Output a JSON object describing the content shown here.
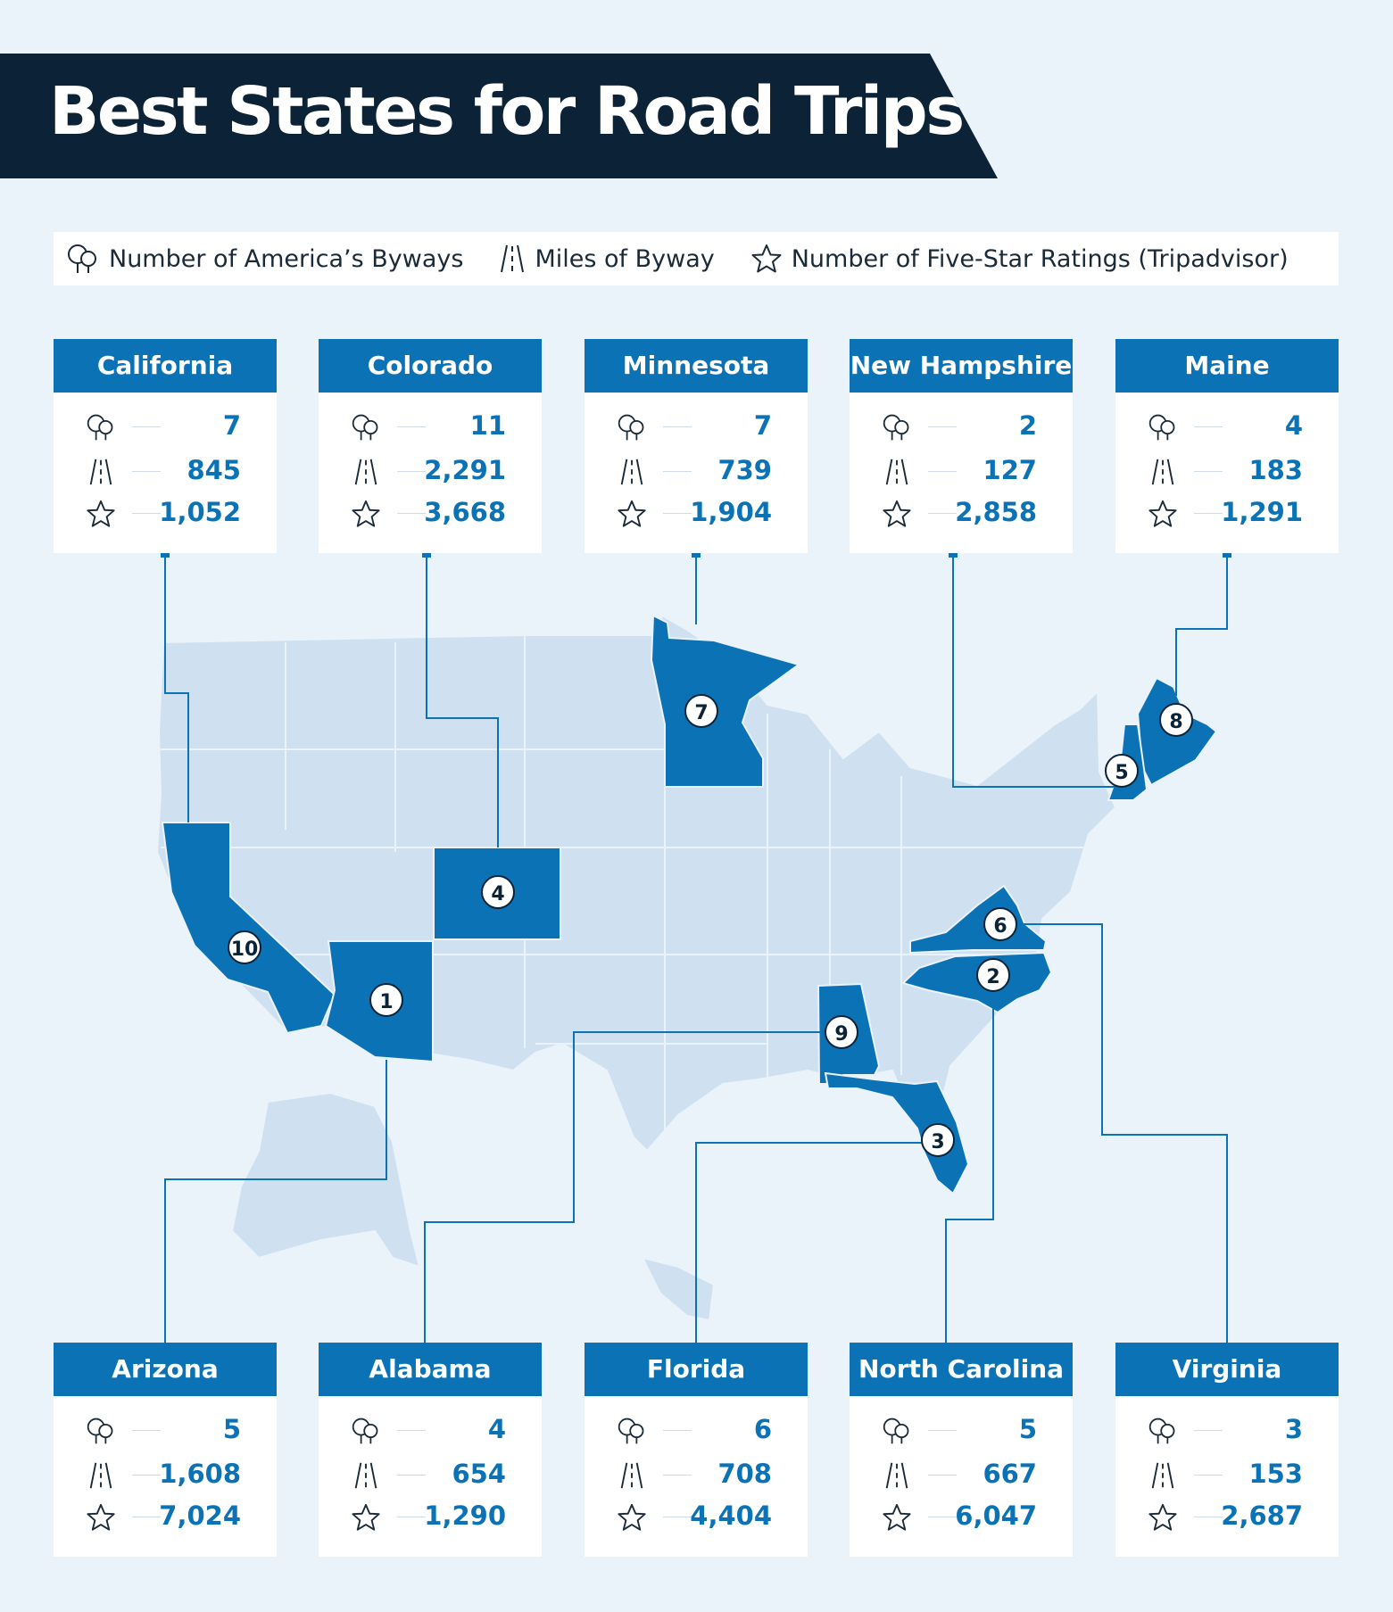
{
  "title": "Best States for Road Trips",
  "legend": {
    "byways": "Number of America’s Byways",
    "miles": "Miles of Byway",
    "ratings": "Number of Five-Star Ratings (Tripadvisor)"
  },
  "colors": {
    "banner": "#0c2337",
    "accent": "#0b73b5",
    "map_base": "#cfe0f0",
    "background": "#eaf2fa"
  },
  "states": [
    {
      "name": "California",
      "rank": "10",
      "byways": "7",
      "miles": "845",
      "ratings": "1,052"
    },
    {
      "name": "Colorado",
      "rank": "4",
      "byways": "11",
      "miles": "2,291",
      "ratings": "3,668"
    },
    {
      "name": "Minnesota",
      "rank": "7",
      "byways": "7",
      "miles": "739",
      "ratings": "1,904"
    },
    {
      "name": "New Hampshire",
      "rank": "5",
      "byways": "2",
      "miles": "127",
      "ratings": "2,858"
    },
    {
      "name": "Maine",
      "rank": "8",
      "byways": "4",
      "miles": "183",
      "ratings": "1,291"
    },
    {
      "name": "Arizona",
      "rank": "1",
      "byways": "5",
      "miles": "1,608",
      "ratings": "7,024"
    },
    {
      "name": "Alabama",
      "rank": "9",
      "byways": "4",
      "miles": "654",
      "ratings": "1,290"
    },
    {
      "name": "Florida",
      "rank": "3",
      "byways": "6",
      "miles": "708",
      "ratings": "4,404"
    },
    {
      "name": "North Carolina",
      "rank": "2",
      "byways": "5",
      "miles": "667",
      "ratings": "6,047"
    },
    {
      "name": "Virginia",
      "rank": "6",
      "byways": "3",
      "miles": "153",
      "ratings": "2,687"
    }
  ]
}
